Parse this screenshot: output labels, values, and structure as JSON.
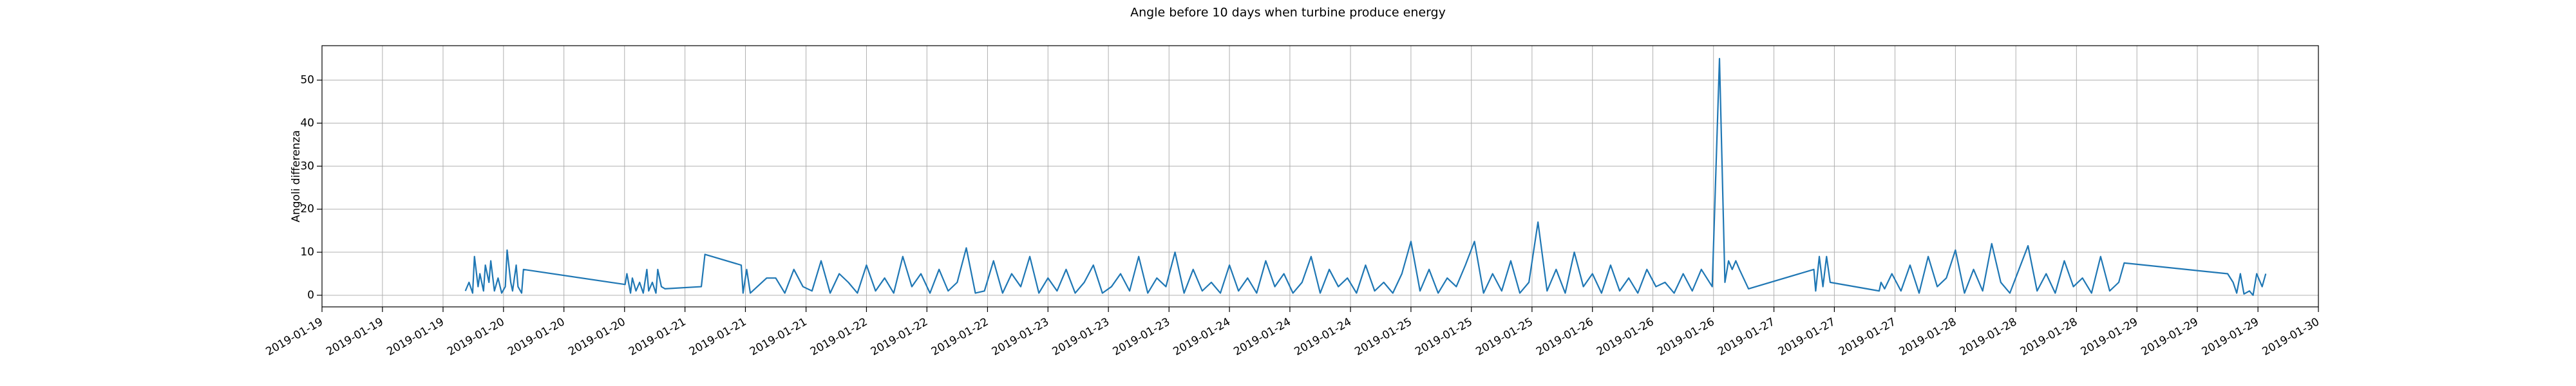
{
  "chart_data": {
    "type": "line",
    "title": "Angle before 10 days when turbine produce energy",
    "ylabel": "Angoli differenza",
    "color": "#1f77b4",
    "grid": true,
    "xlim": [
      19,
      30
    ],
    "ylim": [
      -2.7,
      58
    ],
    "yticks": [
      0,
      10,
      20,
      30,
      40,
      50
    ],
    "xticks": [
      {
        "value": 19,
        "label": "2019-01-19"
      },
      {
        "value": 19.333,
        "label": "2019-01-19"
      },
      {
        "value": 19.667,
        "label": "2019-01-19"
      },
      {
        "value": 20,
        "label": "2019-01-20"
      },
      {
        "value": 20.333,
        "label": "2019-01-20"
      },
      {
        "value": 20.667,
        "label": "2019-01-20"
      },
      {
        "value": 21,
        "label": "2019-01-21"
      },
      {
        "value": 21.333,
        "label": "2019-01-21"
      },
      {
        "value": 21.667,
        "label": "2019-01-21"
      },
      {
        "value": 22,
        "label": "2019-01-22"
      },
      {
        "value": 22.333,
        "label": "2019-01-22"
      },
      {
        "value": 22.667,
        "label": "2019-01-22"
      },
      {
        "value": 23,
        "label": "2019-01-23"
      },
      {
        "value": 23.333,
        "label": "2019-01-23"
      },
      {
        "value": 23.667,
        "label": "2019-01-23"
      },
      {
        "value": 24,
        "label": "2019-01-24"
      },
      {
        "value": 24.333,
        "label": "2019-01-24"
      },
      {
        "value": 24.667,
        "label": "2019-01-24"
      },
      {
        "value": 25,
        "label": "2019-01-25"
      },
      {
        "value": 25.333,
        "label": "2019-01-25"
      },
      {
        "value": 25.667,
        "label": "2019-01-25"
      },
      {
        "value": 26,
        "label": "2019-01-26"
      },
      {
        "value": 26.333,
        "label": "2019-01-26"
      },
      {
        "value": 26.667,
        "label": "2019-01-26"
      },
      {
        "value": 27,
        "label": "2019-01-27"
      },
      {
        "value": 27.333,
        "label": "2019-01-27"
      },
      {
        "value": 27.667,
        "label": "2019-01-27"
      },
      {
        "value": 28,
        "label": "2019-01-28"
      },
      {
        "value": 28.333,
        "label": "2019-01-28"
      },
      {
        "value": 28.667,
        "label": "2019-01-28"
      },
      {
        "value": 29,
        "label": "2019-01-29"
      },
      {
        "value": 29.333,
        "label": "2019-01-29"
      },
      {
        "value": 29.667,
        "label": "2019-01-29"
      },
      {
        "value": 30,
        "label": "2019-01-30"
      }
    ],
    "x": [
      19.79,
      19.81,
      19.83,
      19.84,
      19.86,
      19.87,
      19.89,
      19.9,
      19.92,
      19.93,
      19.95,
      19.97,
      19.99,
      20.01,
      20.02,
      20.04,
      20.05,
      20.07,
      20.08,
      20.1,
      20.11,
      20.67,
      20.68,
      20.7,
      20.71,
      20.73,
      20.75,
      20.77,
      20.79,
      20.8,
      20.82,
      20.84,
      20.85,
      20.87,
      20.89,
      21.09,
      21.11,
      21.31,
      21.32,
      21.34,
      21.36,
      21.45,
      21.5,
      21.55,
      21.6,
      21.65,
      21.7,
      21.75,
      21.8,
      21.85,
      21.9,
      21.95,
      22,
      22.05,
      22.1,
      22.15,
      22.2,
      22.25,
      22.3,
      22.35,
      22.4,
      22.45,
      22.5,
      22.55,
      22.6,
      22.65,
      22.7,
      22.75,
      22.8,
      22.85,
      22.9,
      22.95,
      23,
      23.05,
      23.1,
      23.15,
      23.2,
      23.25,
      23.3,
      23.35,
      23.4,
      23.45,
      23.5,
      23.55,
      23.6,
      23.65,
      23.7,
      23.75,
      23.8,
      23.85,
      23.9,
      23.95,
      24,
      24.05,
      24.1,
      24.15,
      24.2,
      24.25,
      24.3,
      24.35,
      24.4,
      24.45,
      24.5,
      24.55,
      24.6,
      24.65,
      24.7,
      24.75,
      24.8,
      24.85,
      24.9,
      24.95,
      25,
      25.05,
      25.1,
      25.15,
      25.2,
      25.25,
      25.3,
      25.35,
      25.4,
      25.45,
      25.5,
      25.55,
      25.6,
      25.65,
      25.7,
      25.75,
      25.8,
      25.85,
      25.9,
      25.95,
      26,
      26.05,
      26.1,
      26.15,
      26.2,
      26.25,
      26.3,
      26.35,
      26.4,
      26.45,
      26.5,
      26.55,
      26.6,
      26.66,
      26.7,
      26.73,
      26.75,
      26.77,
      26.79,
      26.81,
      26.86,
      27.22,
      27.23,
      27.25,
      27.27,
      27.29,
      27.31,
      27.58,
      27.59,
      27.61,
      27.65,
      27.7,
      27.75,
      27.8,
      27.85,
      27.9,
      27.95,
      28,
      28.05,
      28.1,
      28.15,
      28.2,
      28.25,
      28.3,
      28.35,
      28.4,
      28.45,
      28.5,
      28.55,
      28.6,
      28.65,
      28.7,
      28.75,
      28.8,
      28.85,
      28.9,
      28.93,
      29.5,
      29.53,
      29.55,
      29.57,
      29.59,
      29.62,
      29.64,
      29.66,
      29.69,
      29.71
    ],
    "values": [
      1,
      3,
      0.5,
      9,
      2,
      5,
      1,
      7,
      3,
      8,
      1,
      4,
      0.5,
      2,
      10.5,
      3,
      1,
      7,
      2,
      0.5,
      6,
      2.5,
      5,
      0.5,
      4,
      1,
      3,
      0.5,
      6,
      1,
      3,
      0.5,
      6,
      2,
      1.5,
      2,
      9.5,
      7,
      0.5,
      6,
      0.5,
      4,
      4,
      0.5,
      6,
      2,
      1,
      8,
      0.5,
      5,
      3,
      0.5,
      7,
      1,
      4,
      0.5,
      9,
      2,
      5,
      0.5,
      6,
      1,
      3,
      11,
      0.5,
      1,
      8,
      0.5,
      5,
      2,
      9,
      0.5,
      4,
      1,
      6,
      0.5,
      3,
      7,
      0.5,
      2,
      5,
      1,
      9,
      0.5,
      4,
      2,
      10,
      0.5,
      6,
      1,
      3,
      0.5,
      7,
      1,
      4,
      0.5,
      8,
      2,
      5,
      0.5,
      3,
      9,
      0.5,
      6,
      2,
      4,
      0.5,
      7,
      1,
      3,
      0.5,
      5,
      12.5,
      1,
      6,
      0.5,
      4,
      2,
      7,
      12.5,
      0.5,
      5,
      1,
      8,
      0.5,
      3,
      17,
      1,
      6,
      0.5,
      10,
      2,
      5,
      0.5,
      7,
      1,
      4,
      0.5,
      6,
      2,
      3,
      0.5,
      5,
      1,
      6,
      2,
      55,
      3,
      8,
      6,
      8,
      6,
      1.5,
      6,
      1,
      9,
      2,
      9,
      3,
      1,
      3,
      1.5,
      5,
      1,
      7,
      0.5,
      9,
      2,
      4,
      10.5,
      0.5,
      6,
      1,
      12,
      3,
      0.5,
      6,
      11.5,
      1,
      5,
      0.5,
      8,
      2,
      4,
      0.5,
      9,
      1,
      3,
      7.5,
      5,
      3,
      0.5,
      5,
      0.3,
      1,
      0,
      5,
      2,
      5
    ]
  }
}
